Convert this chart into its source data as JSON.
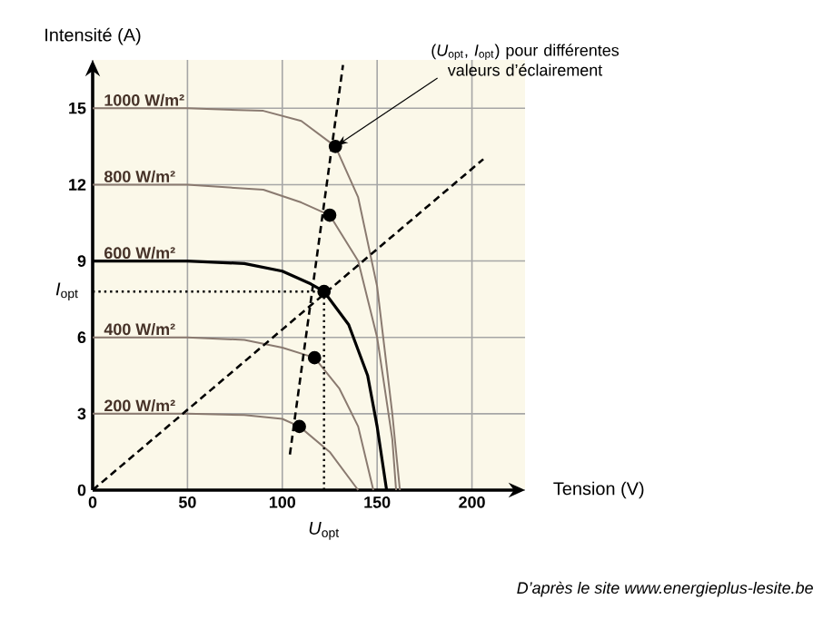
{
  "chart_data": {
    "type": "line",
    "xlabel": "Tension (V)",
    "ylabel": "Intensité (A)",
    "xlim": [
      0,
      228
    ],
    "ylim": [
      0,
      16.9
    ],
    "xticks": [
      0,
      50,
      100,
      150,
      200
    ],
    "yticks": [
      0,
      3,
      6,
      9,
      12,
      15
    ],
    "grid": true,
    "series": [
      {
        "name": "1000 W/m²",
        "color": "#8a7a70",
        "x": [
          0,
          50,
          90,
          110,
          128,
          140,
          150,
          158,
          162
        ],
        "values": [
          15,
          15,
          14.9,
          14.5,
          13.5,
          11.5,
          8,
          3,
          0
        ]
      },
      {
        "name": "800 W/m²",
        "color": "#8a7a70",
        "x": [
          0,
          50,
          90,
          110,
          125,
          140,
          150,
          158,
          160
        ],
        "values": [
          12,
          12,
          11.8,
          11.3,
          10.8,
          9,
          6,
          2,
          0
        ]
      },
      {
        "name": "600 W/m²",
        "color": "#000000",
        "x": [
          0,
          50,
          80,
          100,
          115,
          122,
          135,
          145,
          150,
          155
        ],
        "values": [
          9,
          9,
          8.9,
          8.6,
          8.1,
          7.8,
          6.5,
          4.5,
          2.5,
          0
        ]
      },
      {
        "name": "400 W/m²",
        "color": "#8a7a70",
        "x": [
          0,
          50,
          80,
          100,
          117,
          130,
          140,
          148
        ],
        "values": [
          6,
          6,
          5.9,
          5.6,
          5.2,
          4,
          2.5,
          0
        ]
      },
      {
        "name": "200 W/m²",
        "color": "#8a7a70",
        "x": [
          0,
          50,
          80,
          100,
          109,
          125,
          135,
          140
        ],
        "values": [
          3,
          3,
          2.95,
          2.8,
          2.5,
          1.5,
          0.5,
          0
        ]
      },
      {
        "type": "line",
        "line_style": "dashed",
        "color": "#000000",
        "x": [
          104,
          132
        ],
        "values": [
          1.4,
          16.7
        ]
      },
      {
        "type": "line",
        "line_style": "dashed",
        "color": "#000000",
        "x": [
          0,
          206
        ],
        "values": [
          0,
          13.0
        ]
      },
      {
        "type": "scatter",
        "marker": "circle",
        "color": "#000000",
        "x": [
          109,
          117,
          122,
          125,
          128
        ],
        "values": [
          2.5,
          5.2,
          7.8,
          10.8,
          13.5
        ]
      }
    ],
    "ref_lines": [
      {
        "axis": "x",
        "value": 122,
        "label": "*U*$_{opt}$",
        "line_style": "dotted"
      },
      {
        "axis": "y",
        "value": 7.8,
        "label": "*I*$_{opt}$",
        "line_style": "dotted"
      }
    ],
    "annotations": [
      {
        "text": "(*U*$_{opt}$, *I*$_{opt}$) pour différentes valeurs d’éclairement",
        "x": 128,
        "y": 13.5
      },
      "D’après le site www.energieplus-lesite.be"
    ]
  }
}
